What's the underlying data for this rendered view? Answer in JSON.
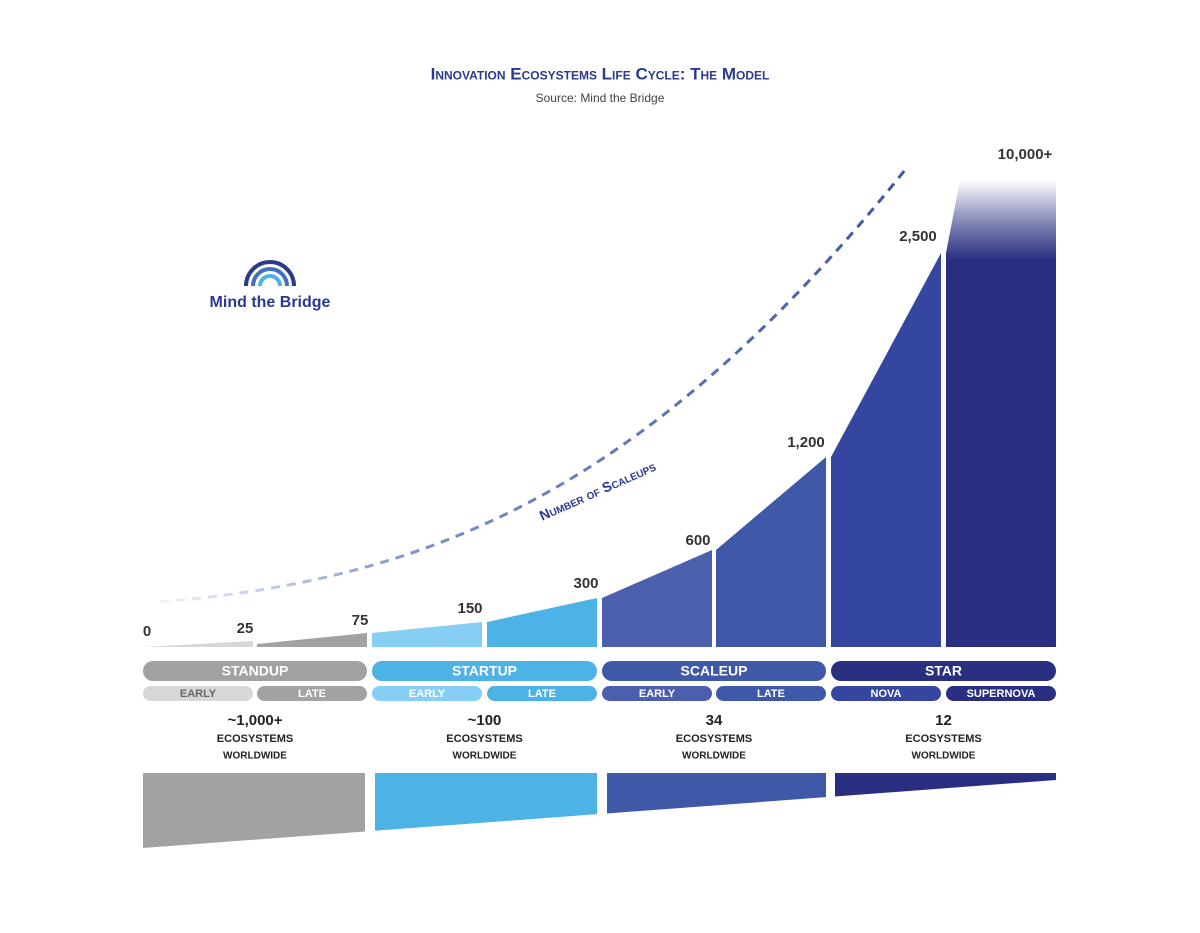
{
  "title": "Innovation Ecosystems Life Cycle: The Model",
  "source": "Source: Mind the Bridge",
  "logo": {
    "text": "Mind the Bridge"
  },
  "curve_label": "Number of Scaleups",
  "scaleup_labels": [
    "0",
    "25",
    "75",
    "150",
    "300",
    "600",
    "1,200",
    "2,500",
    "10,000+"
  ],
  "stages": [
    {
      "name": "STANDUP",
      "substages": [
        "EARLY",
        "LATE"
      ],
      "count": "~1,000+",
      "line1": "ECOSYSTEMS",
      "line2": "WORLDWIDE"
    },
    {
      "name": "STARTUP",
      "substages": [
        "EARLY",
        "LATE"
      ],
      "count": "~100",
      "line1": "ECOSYSTEMS",
      "line2": "WORLDWIDE"
    },
    {
      "name": "SCALEUP",
      "substages": [
        "EARLY",
        "LATE"
      ],
      "count": "34",
      "line1": "ECOSYSTEMS",
      "line2": "WORLDWIDE"
    },
    {
      "name": "STAR",
      "substages": [
        "NOVA",
        "SUPERNOVA"
      ],
      "count": "12",
      "line1": "ECOSYSTEMS",
      "line2": "WORLDWIDE"
    }
  ]
}
